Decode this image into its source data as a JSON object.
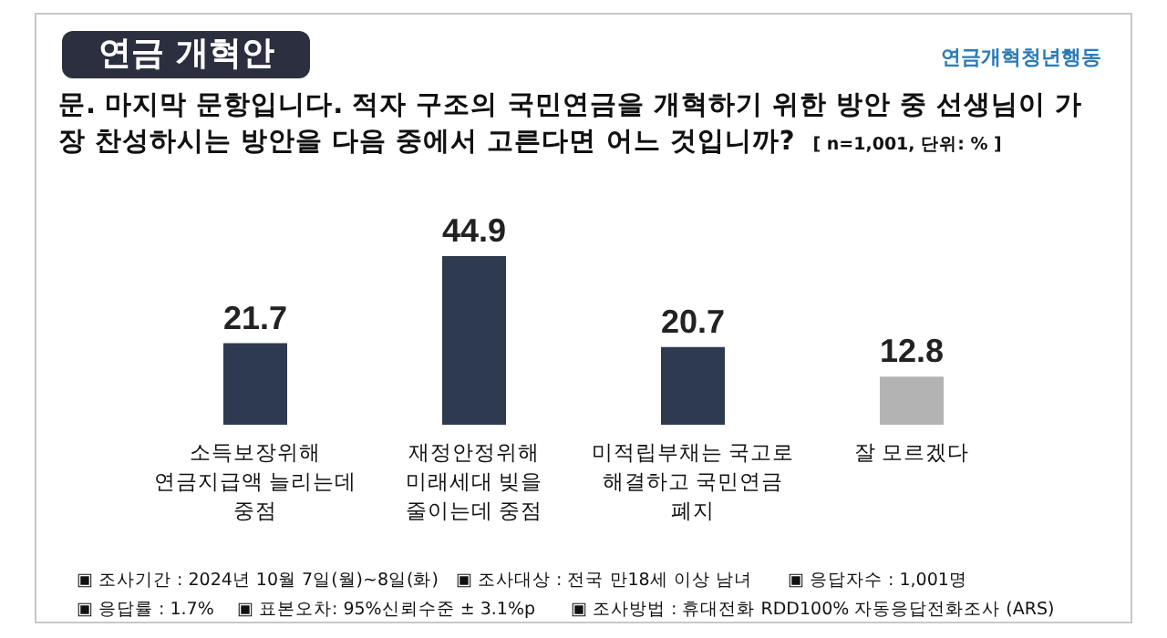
{
  "chart_data": {
    "type": "bar",
    "title": "연금 개혁안",
    "subtitle": "문. 마지막 문항입니다. 적자 구조의 국민연금을 개혁하기 위한 방안 중 선생님이 가장 찬성하시는 방안을 다음 중에서 고른다면 어느 것입니까?",
    "categories": [
      "소득보장위해\n연금지급액 늘리는데\n중점",
      "재정안정위해\n미래세대 빚을\n줄이는데 중점",
      "미적립부채는 국고로\n해결하고 국민연금\n폐지",
      "잘 모르겠다"
    ],
    "values": [
      21.7,
      44.9,
      20.7,
      12.8
    ],
    "colors": [
      "#2e3a4f",
      "#2e3a4f",
      "#2e3a4f",
      "#b3b3b3"
    ],
    "data_labels": true,
    "annotations": [
      "연금개혁청년행동",
      "[ n=1,001, 단위: % ]",
      "▣ 조사기간 : 2024년 10월 7일(월)~8일(화)",
      "▣ 조사대상 : 전국 만18세 이상 남녀",
      "▣ 응답자수 : 1,001명",
      "▣ 응답률 : 1.7%",
      "▣ 표본오차: 95%신뢰수준 ± 3.1%p",
      "▣ 조사방법 : 휴대전화 RDD100% 자동응답전화조사 (ARS)"
    ]
  }
}
